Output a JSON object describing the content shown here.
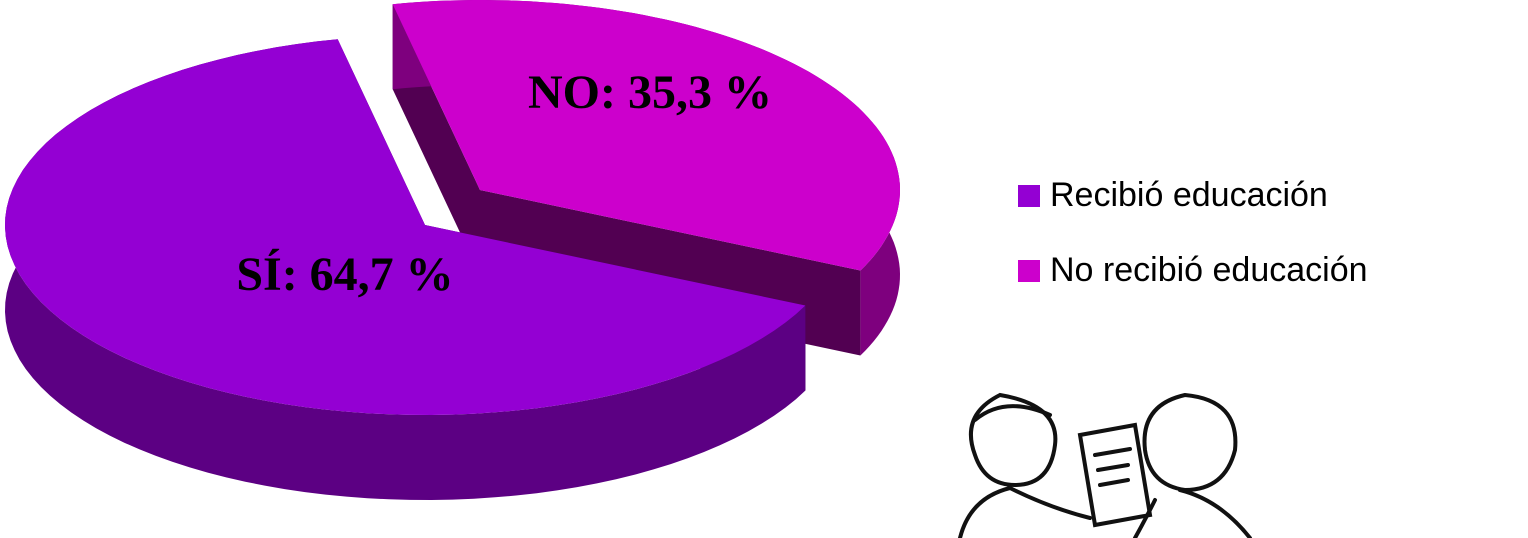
{
  "chart_data": {
    "type": "pie",
    "categories": [
      "Recibió educación",
      "No recibió educación"
    ],
    "values": [
      64.7,
      35.3
    ],
    "value_labels": [
      "SÍ: 64,7 %",
      "NO: 35,3 %"
    ],
    "colors": [
      "#9400d3",
      "#cc00cc"
    ]
  }
}
